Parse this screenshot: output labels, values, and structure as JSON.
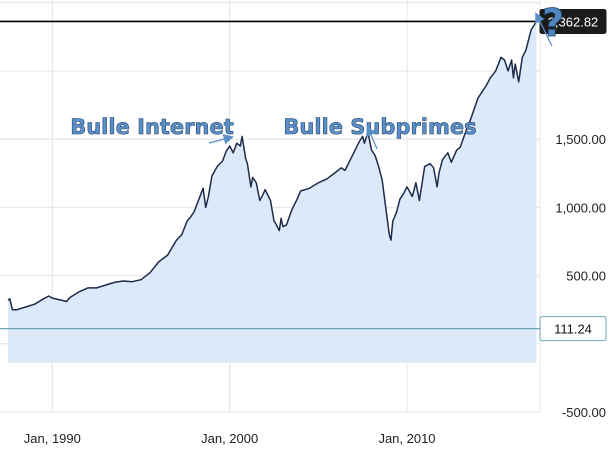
{
  "chart_data": {
    "type": "area",
    "x_ticks": [
      "Jan, 1990",
      "Jan, 2000",
      "Jan, 2010"
    ],
    "y_ticks": [
      "-500.00",
      "500.00",
      "1,000.00",
      "1,500.00"
    ],
    "ylim": [
      -500,
      2520
    ],
    "xlim": [
      1987.5,
      2017.5
    ],
    "grid": true,
    "reference_lines": [
      {
        "label": "2,362.82",
        "value": 2362.82,
        "color": "#000000"
      },
      {
        "label": "111.24",
        "value": 111.24,
        "color": "#6aa6b8"
      }
    ],
    "annotations": [
      {
        "text": "Bulle Internet",
        "x": 2000.1,
        "y": 1470
      },
      {
        "text": "Bulle Subprimes",
        "x": 2007.8,
        "y": 1540
      },
      {
        "text": "?",
        "x": 2017.3,
        "y": 2370
      }
    ],
    "series": [
      {
        "x": [
          1987.5,
          1987.6,
          1987.75,
          1988.0,
          1988.5,
          1989.0,
          1989.5,
          1989.8,
          1990.0,
          1990.5,
          1990.8,
          1991.0,
          1991.5,
          1992.0,
          1992.5,
          1993.0,
          1993.5,
          1994.0,
          1994.5,
          1995.0,
          1995.5,
          1996.0,
          1996.5,
          1997.0,
          1997.3,
          1997.6,
          1997.8,
          1998.0,
          1998.5,
          1998.65,
          1998.8,
          1999.0,
          1999.3,
          1999.6,
          1999.8,
          2000.0,
          2000.2,
          2000.4,
          2000.6,
          2000.7,
          2000.9,
          2001.0,
          2001.2,
          2001.3,
          2001.5,
          2001.7,
          2001.9,
          2002.0,
          2002.3,
          2002.5,
          2002.6,
          2002.8,
          2002.9,
          2003.0,
          2003.2,
          2003.5,
          2003.8,
          2004.0,
          2004.5,
          2005.0,
          2005.5,
          2006.0,
          2006.3,
          2006.5,
          2007.0,
          2007.3,
          2007.5,
          2007.6,
          2007.8,
          2008.0,
          2008.2,
          2008.4,
          2008.6,
          2008.8,
          2008.9,
          2009.0,
          2009.1,
          2009.2,
          2009.4,
          2009.6,
          2009.8,
          2010.0,
          2010.3,
          2010.5,
          2010.7,
          2011.0,
          2011.3,
          2011.5,
          2011.7,
          2011.8,
          2012.0,
          2012.3,
          2012.5,
          2012.8,
          2013.0,
          2013.3,
          2013.6,
          2014.0,
          2014.5,
          2014.7,
          2015.0,
          2015.3,
          2015.5,
          2015.7,
          2015.9,
          2016.0,
          2016.1,
          2016.3,
          2016.5,
          2016.7,
          2017.0,
          2017.3
        ],
        "y": [
          320,
          330,
          250,
          250,
          270,
          290,
          330,
          350,
          335,
          320,
          310,
          340,
          380,
          410,
          410,
          430,
          450,
          460,
          455,
          470,
          520,
          600,
          650,
          760,
          800,
          900,
          930,
          970,
          1140,
          1000,
          1080,
          1230,
          1300,
          1340,
          1410,
          1450,
          1400,
          1470,
          1450,
          1520,
          1360,
          1320,
          1150,
          1220,
          1180,
          1050,
          1100,
          1130,
          1050,
          900,
          880,
          830,
          920,
          860,
          870,
          980,
          1060,
          1120,
          1140,
          1180,
          1210,
          1260,
          1290,
          1270,
          1400,
          1480,
          1520,
          1470,
          1550,
          1420,
          1380,
          1300,
          1200,
          1000,
          900,
          800,
          760,
          900,
          960,
          1060,
          1100,
          1150,
          1080,
          1180,
          1050,
          1300,
          1320,
          1290,
          1150,
          1250,
          1350,
          1400,
          1330,
          1420,
          1440,
          1550,
          1650,
          1800,
          1900,
          1950,
          2000,
          2100,
          2080,
          2000,
          2080,
          1950,
          2050,
          1920,
          2100,
          2150,
          2300,
          2362.82
        ]
      }
    ]
  }
}
